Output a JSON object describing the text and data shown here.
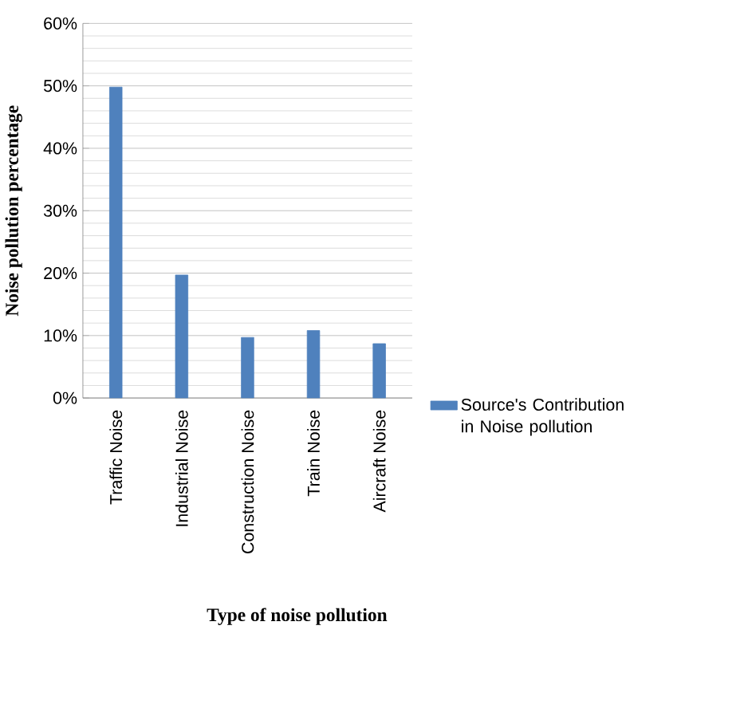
{
  "chart_data": {
    "type": "bar",
    "xlabel": "Type of noise pollution",
    "ylabel": "Noise pollution percentage",
    "categories": [
      "Traffic Noise",
      "Industrial Noise",
      "Construction Noise",
      "Train Noise",
      "Aircraft Noise"
    ],
    "series": [
      {
        "name": "Source's Contribution in Noise pollution",
        "color": "#4f81bd",
        "values": [
          49.8,
          19.7,
          9.7,
          10.8,
          8.7
        ]
      }
    ],
    "ylim": [
      0,
      60
    ],
    "yticks": [
      {
        "value": 0,
        "label": "0%"
      },
      {
        "value": 10,
        "label": "10%"
      },
      {
        "value": 20,
        "label": "20%"
      },
      {
        "value": 30,
        "label": "30%"
      },
      {
        "value": 40,
        "label": "40%"
      },
      {
        "value": 50,
        "label": "50%"
      },
      {
        "value": 60,
        "label": "60%"
      }
    ],
    "grid": "y",
    "legend": "right"
  }
}
